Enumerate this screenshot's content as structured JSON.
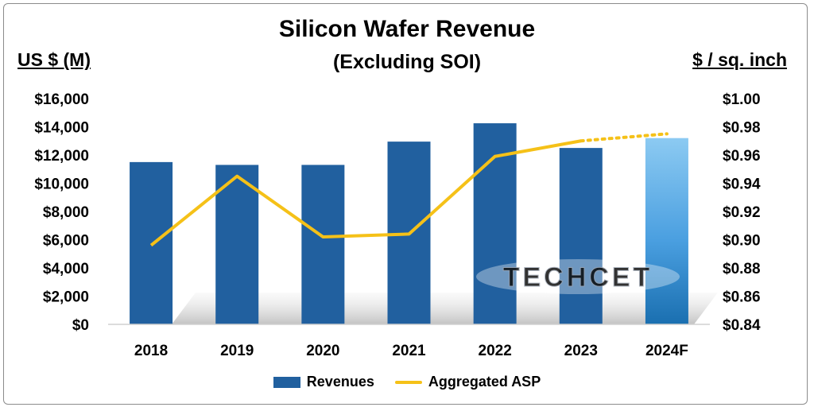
{
  "chart_data": {
    "type": "bar",
    "title": "Silicon Wafer Revenue",
    "subtitle": "(Excluding SOI)",
    "y_left_label": "US $ (M)",
    "y_right_label": "$ / sq. inch",
    "categories": [
      "2018",
      "2019",
      "2020",
      "2021",
      "2022",
      "2023",
      "2024F"
    ],
    "series": [
      {
        "name": "Revenues",
        "type": "bar",
        "axis": "left",
        "values": [
          11500,
          11300,
          11300,
          12950,
          14250,
          12500,
          13200
        ],
        "color": "#21609f",
        "forecast_color": "#5aaee8"
      },
      {
        "name": "Aggregated ASP",
        "type": "line",
        "axis": "right",
        "values": [
          0.896,
          0.945,
          0.902,
          0.904,
          0.959,
          0.97,
          0.975
        ],
        "color": "#f5c118",
        "dotted_from_index": 5
      }
    ],
    "ylim_left": [
      0,
      16000
    ],
    "yticks_left": [
      "$0",
      "$2,000",
      "$4,000",
      "$6,000",
      "$8,000",
      "$10,000",
      "$12,000",
      "$14,000",
      "$16,000"
    ],
    "yticks_left_values": [
      0,
      2000,
      4000,
      6000,
      8000,
      10000,
      12000,
      14000,
      16000
    ],
    "ylim_right": [
      0.84,
      1.0
    ],
    "yticks_right": [
      "$0.84",
      "$0.86",
      "$0.88",
      "$0.90",
      "$0.92",
      "$0.94",
      "$0.96",
      "$0.98",
      "$1.00"
    ],
    "yticks_right_values": [
      0.84,
      0.86,
      0.88,
      0.9,
      0.92,
      0.94,
      0.96,
      0.98,
      1.0
    ],
    "grid": false,
    "legend_position": "bottom",
    "watermark": "TECHCET"
  }
}
